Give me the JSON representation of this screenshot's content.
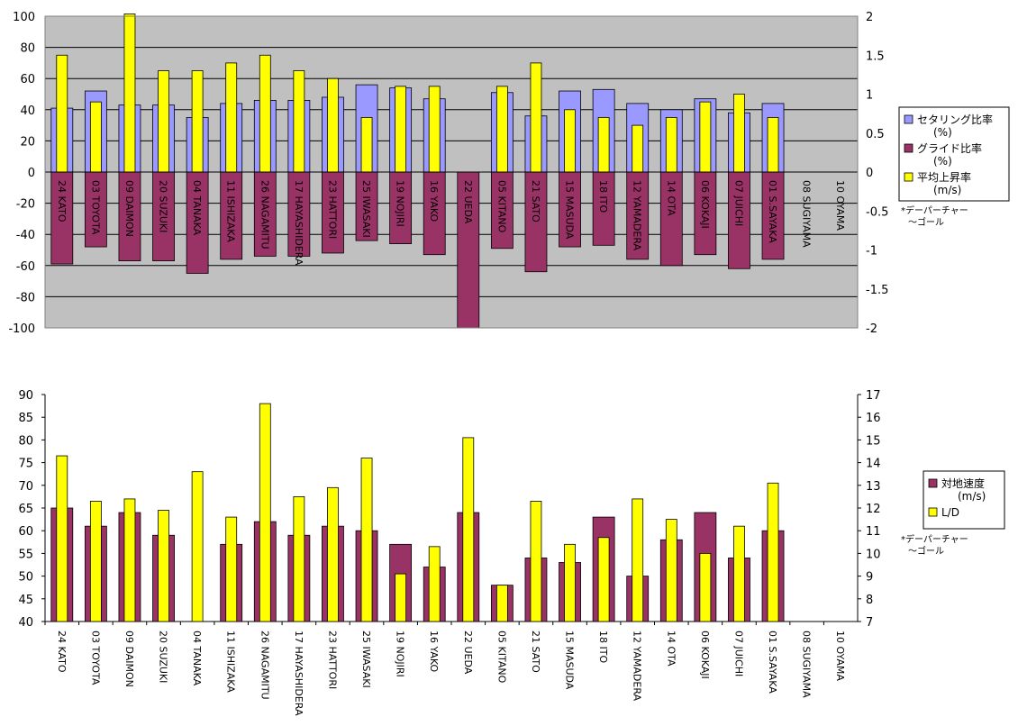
{
  "pilots": [
    "24 KATO",
    "03 TOYOTA",
    "09 DAIMON",
    "20 SUZUKI",
    "04 TANAKA",
    "11 ISHIZAKA",
    "26 NAGAMITU",
    "17 HAYASHIDERA",
    "23 HATTORI",
    "25 IWASAKI",
    "19 NOJIRI",
    "16 YAKO",
    "22 UEDA",
    "05 KITANO",
    "21 SATO",
    "15 MASUDA",
    "18 ITO",
    "12 YAMADERA",
    "14 OTA",
    "06 KOKAJI",
    "07 JUICHI",
    "01 S.SAYAKA",
    "08 SUGIYAMA",
    "10 OYAMA"
  ],
  "chart_data": [
    {
      "type": "bar",
      "categories_ref": "pilots",
      "ylim": [
        -100,
        100
      ],
      "y_ticks": [
        "100",
        "80",
        "60",
        "40",
        "20",
        "0",
        "-20",
        "-40",
        "-60",
        "-80",
        "-100"
      ],
      "y2lim": [
        -2,
        2
      ],
      "y2_ticks": [
        "2",
        "1.5",
        "1",
        "0.5",
        "0",
        "-0.5",
        "-1",
        "-1.5",
        "-2"
      ],
      "grid": true,
      "legend_position": "right",
      "legend": [
        "セタリング比率(%)",
        "グライド比率(%)",
        "平均上昇率(m/s)"
      ],
      "note": "*デーパーチャー〜ゴール",
      "series": [
        {
          "name": "セタリング比率(%)",
          "axis": "left",
          "color": "#9999ff",
          "values": [
            41,
            52,
            43,
            43,
            35,
            44,
            46,
            46,
            48,
            56,
            54,
            47,
            null,
            51,
            36,
            52,
            53,
            44,
            40,
            47,
            38,
            44,
            null,
            null
          ]
        },
        {
          "name": "グライド比率(%)",
          "axis": "left",
          "color": "#993366",
          "values": [
            -59,
            -48,
            -57,
            -57,
            -65,
            -56,
            -54,
            -54,
            -52,
            -44,
            -46,
            -53,
            -100,
            -49,
            -64,
            -48,
            -47,
            -56,
            -60,
            -53,
            -62,
            -56,
            null,
            null
          ]
        },
        {
          "name": "平均上昇率(m/s)",
          "axis": "right",
          "color": "#ffff00",
          "values": [
            1.5,
            0.9,
            2.03,
            1.3,
            1.3,
            1.4,
            1.5,
            1.3,
            1.2,
            0.7,
            1.1,
            1.1,
            null,
            1.1,
            1.4,
            0.8,
            0.7,
            0.6,
            0.7,
            0.9,
            1.0,
            0.7,
            null,
            null
          ]
        }
      ]
    },
    {
      "type": "bar",
      "categories_ref": "pilots",
      "ylim": [
        40,
        90
      ],
      "y_ticks": [
        "90",
        "85",
        "80",
        "75",
        "70",
        "65",
        "60",
        "55",
        "50",
        "45",
        "40"
      ],
      "y2lim": [
        7,
        17
      ],
      "y2_ticks": [
        "17",
        "16",
        "15",
        "14",
        "13",
        "12",
        "11",
        "10",
        "9",
        "8",
        "7"
      ],
      "grid": false,
      "legend_position": "right",
      "legend": [
        "対地速度(m/s)",
        "L/D"
      ],
      "note": "*デーパーチャー〜ゴール",
      "series": [
        {
          "name": "対地速度(m/s)",
          "axis": "left",
          "color": "#993366",
          "values": [
            65,
            61,
            64,
            59,
            null,
            57,
            62,
            59,
            61,
            60,
            57,
            52,
            64,
            48,
            54,
            53,
            63,
            50,
            58,
            64,
            54,
            60,
            null,
            null
          ]
        },
        {
          "name": "L/D",
          "axis": "right",
          "color": "#ffff00",
          "values": [
            14.3,
            12.3,
            12.4,
            11.9,
            13.6,
            11.6,
            16.6,
            12.5,
            12.9,
            14.2,
            9.1,
            10.3,
            15.1,
            8.6,
            12.3,
            10.4,
            10.7,
            12.4,
            11.5,
            10.0,
            11.2,
            13.1,
            null,
            null
          ]
        }
      ]
    }
  ],
  "legend_top": [
    {
      "key": "legend-settering",
      "color": "#9999ff",
      "lines": [
        "セタリング比率",
        "(%)"
      ]
    },
    {
      "key": "legend-glide",
      "color": "#993366",
      "lines": [
        "グライド比率",
        "(%)"
      ]
    },
    {
      "key": "legend-climb",
      "color": "#ffff00",
      "lines": [
        "平均上昇率",
        "(m/s)"
      ]
    }
  ],
  "legend_bottom": [
    {
      "key": "legend-groundspeed",
      "color": "#993366",
      "lines": [
        "対地速度",
        "(m/s)"
      ]
    },
    {
      "key": "legend-ld",
      "color": "#ffff00",
      "lines": [
        "L/D"
      ]
    }
  ],
  "notes": {
    "top": [
      "*デーパーチャー",
      "〜ゴール"
    ],
    "bottom": [
      "*デーパーチャー",
      "〜ゴール"
    ]
  }
}
